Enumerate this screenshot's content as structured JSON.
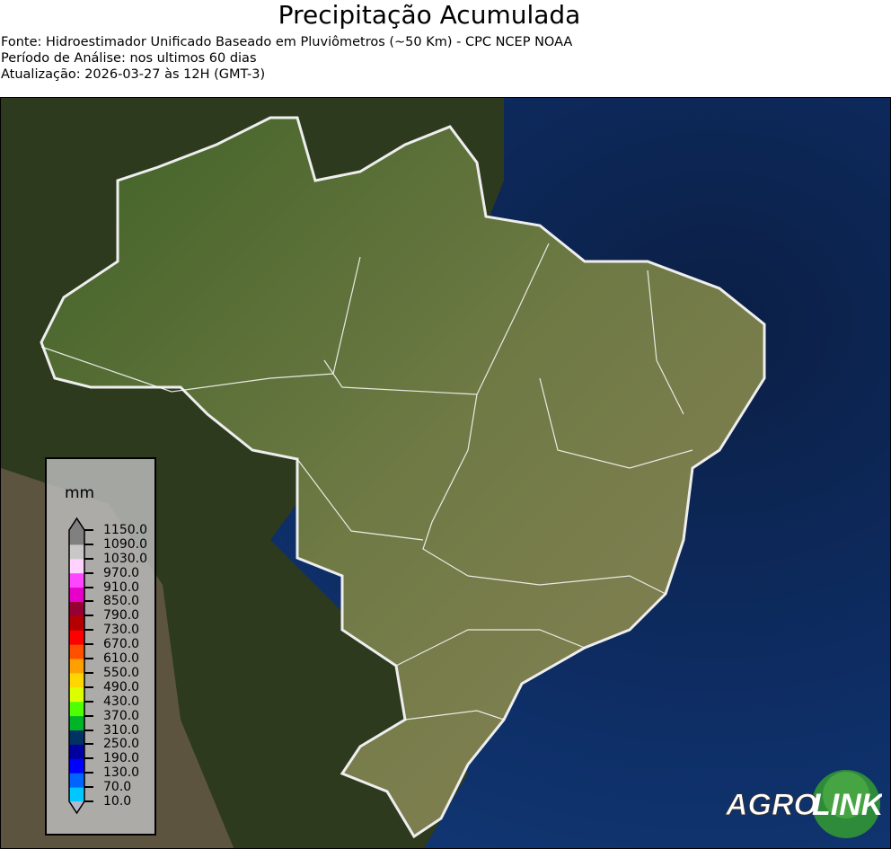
{
  "header": {
    "title": "Precipitação Acumulada",
    "source": "Fonte: Hidroestimador Unificado Baseado em Pluviômetros (~50 Km) - CPC NCEP NOAA",
    "period": "Período de Análise: nos ultimos 60 dias",
    "updated": "Atualização: 2026-03-27 às 12H (GMT-3)"
  },
  "map": {
    "region": "Brasil",
    "background": "satellite imagery",
    "ocean_color": "#0d2a5c",
    "land_color": "#4e6b2c",
    "border_color": "#ffffff"
  },
  "colorbar": {
    "unit": "mm",
    "ticks": [
      "1150.0",
      "1090.0",
      "1030.0",
      "970.0",
      "910.0",
      "850.0",
      "790.0",
      "730.0",
      "670.0",
      "610.0",
      "550.0",
      "490.0",
      "430.0",
      "370.0",
      "310.0",
      "250.0",
      "190.0",
      "130.0",
      "70.0",
      "10.0"
    ],
    "colors": [
      "#00c8ff",
      "#0064ff",
      "#0000ff",
      "#0000a0",
      "#003264",
      "#00b428",
      "#50ff00",
      "#dcff00",
      "#ffd700",
      "#ffa000",
      "#ff5000",
      "#ff0000",
      "#b40000",
      "#960032",
      "#e600c8",
      "#ff46ff",
      "#ffd2ff",
      "#c8c8c8",
      "#808080"
    ],
    "extend_max_color": "#808080",
    "extend_min_color": "#b4b8c8"
  },
  "logo": {
    "text_a": "AGRO",
    "text_b": "LINK"
  }
}
